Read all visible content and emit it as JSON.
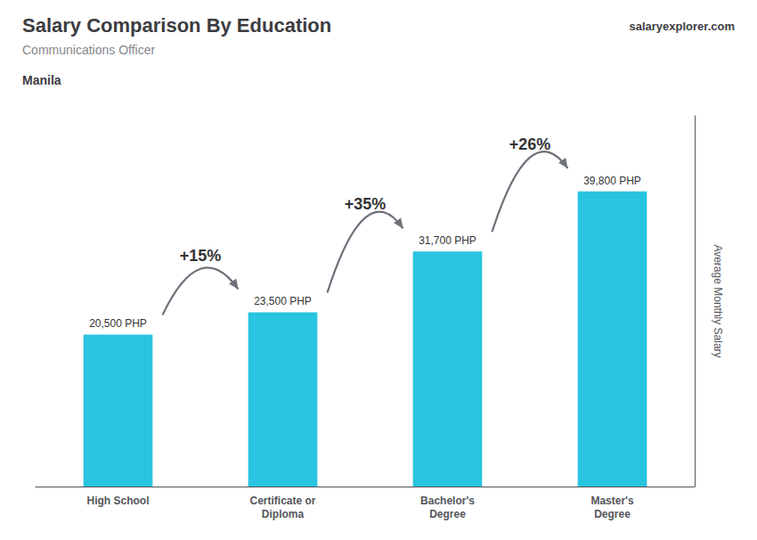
{
  "chart_data": {
    "type": "bar",
    "title": "Salary Comparison By Education",
    "subtitle": "Communications Officer",
    "location": "Manila",
    "brand": "salaryexplorer.com",
    "ylabel": "Average Monthly Salary",
    "categories": [
      "High School",
      "Certificate or\nDiploma",
      "Bachelor's\nDegree",
      "Master's\nDegree"
    ],
    "values": [
      20500,
      23500,
      31700,
      39800
    ],
    "value_labels": [
      "20,500 PHP",
      "23,500 PHP",
      "31,700 PHP",
      "39,800 PHP"
    ],
    "annotations": [
      "+15%",
      "+35%",
      "+26%"
    ],
    "data_labels": true,
    "tick_labels": "x",
    "grid": false,
    "color": "#29c4e0",
    "ylim": [
      0,
      50000
    ]
  }
}
